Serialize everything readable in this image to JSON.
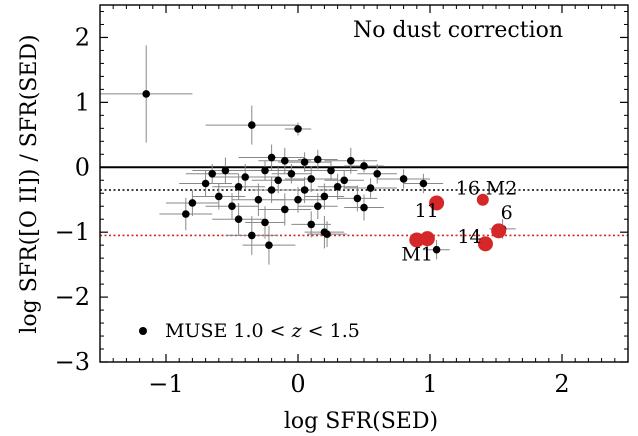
{
  "chart_data": {
    "type": "scatter",
    "title": "",
    "annotation": "No dust correction",
    "xlabel": "log SFR(SED)",
    "ylabel": "log SFR([O II]) / SFR(SED)",
    "xlim": [
      -1.5,
      2.5
    ],
    "ylim": [
      -3,
      2.5
    ],
    "x_ticks": [
      -1,
      0,
      1,
      2
    ],
    "x_tick_labels": [
      "−1",
      "0",
      "1",
      "2"
    ],
    "y_ticks": [
      -3,
      -2,
      -1,
      0,
      1,
      2
    ],
    "y_tick_labels": [
      "−3",
      "−2",
      "−1",
      "0",
      "1",
      "2"
    ],
    "grid": false,
    "legend": {
      "placement": "bottom-left",
      "label_prefix": "MUSE 1.0",
      "label_var": "z",
      "label_suffix": "1.5"
    },
    "reference_lines": [
      {
        "y": 0,
        "style": "solid",
        "color": "#000000"
      },
      {
        "y": -0.35,
        "style": "dotted",
        "color": "#000000"
      },
      {
        "y": -1.05,
        "style": "dotted",
        "color": "#d62728"
      }
    ],
    "series": [
      {
        "name": "MUSE 1.0 < z < 1.5",
        "color": "#000000",
        "points": [
          {
            "x": -1.15,
            "y": 1.13,
            "xerr": 0.35,
            "yerr": 0.75
          },
          {
            "x": -0.35,
            "y": 0.65,
            "xerr": 0.35,
            "yerr": 0.3
          },
          {
            "x": 0.0,
            "y": 0.59,
            "xerr": 0.1,
            "yerr": 0.1
          },
          {
            "x": -0.2,
            "y": 0.15,
            "xerr": 0.25,
            "yerr": 0.2
          },
          {
            "x": -0.1,
            "y": 0.1,
            "xerr": 0.2,
            "yerr": 0.2
          },
          {
            "x": 0.05,
            "y": 0.08,
            "xerr": 0.2,
            "yerr": 0.15
          },
          {
            "x": 0.15,
            "y": 0.12,
            "xerr": 0.15,
            "yerr": 0.15
          },
          {
            "x": 0.4,
            "y": 0.1,
            "xerr": 0.2,
            "yerr": 0.2
          },
          {
            "x": 0.5,
            "y": 0.02,
            "xerr": 0.15,
            "yerr": 0.1
          },
          {
            "x": -0.55,
            "y": -0.05,
            "xerr": 0.25,
            "yerr": 0.2
          },
          {
            "x": -0.65,
            "y": -0.1,
            "xerr": 0.2,
            "yerr": 0.15
          },
          {
            "x": -0.25,
            "y": -0.05,
            "xerr": 0.2,
            "yerr": 0.15
          },
          {
            "x": -0.05,
            "y": -0.1,
            "xerr": 0.15,
            "yerr": 0.15
          },
          {
            "x": 0.25,
            "y": -0.05,
            "xerr": 0.2,
            "yerr": 0.15
          },
          {
            "x": 0.6,
            "y": -0.1,
            "xerr": 0.15,
            "yerr": 0.15
          },
          {
            "x": -0.4,
            "y": -0.15,
            "xerr": 0.25,
            "yerr": 0.2
          },
          {
            "x": -0.15,
            "y": -0.2,
            "xerr": 0.2,
            "yerr": 0.2
          },
          {
            "x": 0.1,
            "y": -0.18,
            "xerr": 0.2,
            "yerr": 0.2
          },
          {
            "x": 0.35,
            "y": -0.2,
            "xerr": 0.15,
            "yerr": 0.15
          },
          {
            "x": 0.8,
            "y": -0.18,
            "xerr": 0.2,
            "yerr": 0.15
          },
          {
            "x": 0.95,
            "y": -0.25,
            "xerr": 0.15,
            "yerr": 0.15
          },
          {
            "x": -0.7,
            "y": -0.25,
            "xerr": 0.2,
            "yerr": 0.2
          },
          {
            "x": -0.45,
            "y": -0.3,
            "xerr": 0.2,
            "yerr": 0.2
          },
          {
            "x": -0.2,
            "y": -0.35,
            "xerr": 0.15,
            "yerr": 0.2
          },
          {
            "x": 0.05,
            "y": -0.35,
            "xerr": 0.2,
            "yerr": 0.2
          },
          {
            "x": 0.3,
            "y": -0.3,
            "xerr": 0.15,
            "yerr": 0.2
          },
          {
            "x": 0.55,
            "y": -0.32,
            "xerr": 0.2,
            "yerr": 0.15
          },
          {
            "x": -0.6,
            "y": -0.45,
            "xerr": 0.2,
            "yerr": 0.2
          },
          {
            "x": -0.3,
            "y": -0.5,
            "xerr": 0.2,
            "yerr": 0.25
          },
          {
            "x": 0.0,
            "y": -0.5,
            "xerr": 0.2,
            "yerr": 0.2
          },
          {
            "x": 0.2,
            "y": -0.45,
            "xerr": 0.15,
            "yerr": 0.2
          },
          {
            "x": 0.45,
            "y": -0.48,
            "xerr": 0.15,
            "yerr": 0.2
          },
          {
            "x": -0.8,
            "y": -0.55,
            "xerr": 0.2,
            "yerr": 0.2
          },
          {
            "x": -0.5,
            "y": -0.6,
            "xerr": 0.2,
            "yerr": 0.2
          },
          {
            "x": -0.1,
            "y": -0.65,
            "xerr": 0.2,
            "yerr": 0.25
          },
          {
            "x": 0.15,
            "y": -0.6,
            "xerr": 0.15,
            "yerr": 0.2
          },
          {
            "x": 0.5,
            "y": -0.62,
            "xerr": 0.15,
            "yerr": 0.2
          },
          {
            "x": -0.85,
            "y": -0.72,
            "xerr": 0.2,
            "yerr": 0.25
          },
          {
            "x": -0.45,
            "y": -0.8,
            "xerr": 0.2,
            "yerr": 0.25
          },
          {
            "x": -0.25,
            "y": -0.85,
            "xerr": 0.15,
            "yerr": 0.25
          },
          {
            "x": 0.1,
            "y": -0.88,
            "xerr": 0.15,
            "yerr": 0.2
          },
          {
            "x": -0.35,
            "y": -1.05,
            "xerr": 0.2,
            "yerr": 0.3
          },
          {
            "x": 0.2,
            "y": -1.0,
            "xerr": 0.15,
            "yerr": 0.25
          },
          {
            "x": 0.22,
            "y": -1.03,
            "xerr": 0.15,
            "yerr": 0.2
          },
          {
            "x": -0.22,
            "y": -1.2,
            "xerr": 0.2,
            "yerr": 0.3
          },
          {
            "x": 1.05,
            "y": -1.27,
            "xerr": 0.1,
            "yerr": 0.15
          },
          {
            "x": 1.55,
            "y": -0.95,
            "xerr": 0.1,
            "yerr": 0.15
          }
        ]
      },
      {
        "name": "",
        "color": "#d62728",
        "labeled_points": [
          {
            "x": 1.05,
            "y": -0.55,
            "label": "11"
          },
          {
            "x": 1.4,
            "y": -0.5,
            "label": "16"
          },
          {
            "x": 1.4,
            "y": -0.5,
            "label": "M2"
          },
          {
            "x": 1.52,
            "y": -0.98,
            "label": "6"
          },
          {
            "x": 1.42,
            "y": -1.18,
            "label": "14"
          },
          {
            "x": 0.98,
            "y": -1.1,
            "label": "M1"
          },
          {
            "x": 0.9,
            "y": -1.12,
            "label": ""
          }
        ]
      }
    ]
  }
}
